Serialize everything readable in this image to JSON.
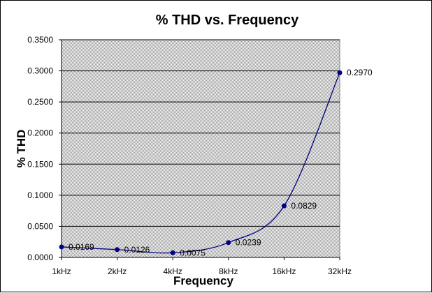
{
  "chart_data": {
    "type": "line",
    "title": "% THD vs. Frequency",
    "xlabel": "Frequency",
    "ylabel": "% THD",
    "categories": [
      "1kHz",
      "2kHz",
      "4kHz",
      "8kHz",
      "16kHz",
      "32kHz"
    ],
    "series": [
      {
        "values": [
          0.0169,
          0.0126,
          0.0075,
          0.0239,
          0.0829,
          0.297
        ],
        "data_labels": [
          "0.0169",
          "0.0126",
          "0.0075",
          "0.0239",
          "0.0829",
          "0.2970"
        ],
        "color": "#000080",
        "line": "smoothed",
        "marker": "circle"
      }
    ],
    "ylim": [
      0,
      0.35
    ],
    "y_ticks": [
      0,
      0.05,
      0.1,
      0.15,
      0.2,
      0.25,
      0.3,
      0.35
    ],
    "y_tick_labels": [
      "0.0000",
      "0.0500",
      "0.1000",
      "0.1500",
      "0.2000",
      "0.2500",
      "0.3000",
      "0.3500"
    ],
    "grid": true,
    "legend": "none",
    "plot_background": "#c0c0c0",
    "gridline_color": "#000000"
  }
}
